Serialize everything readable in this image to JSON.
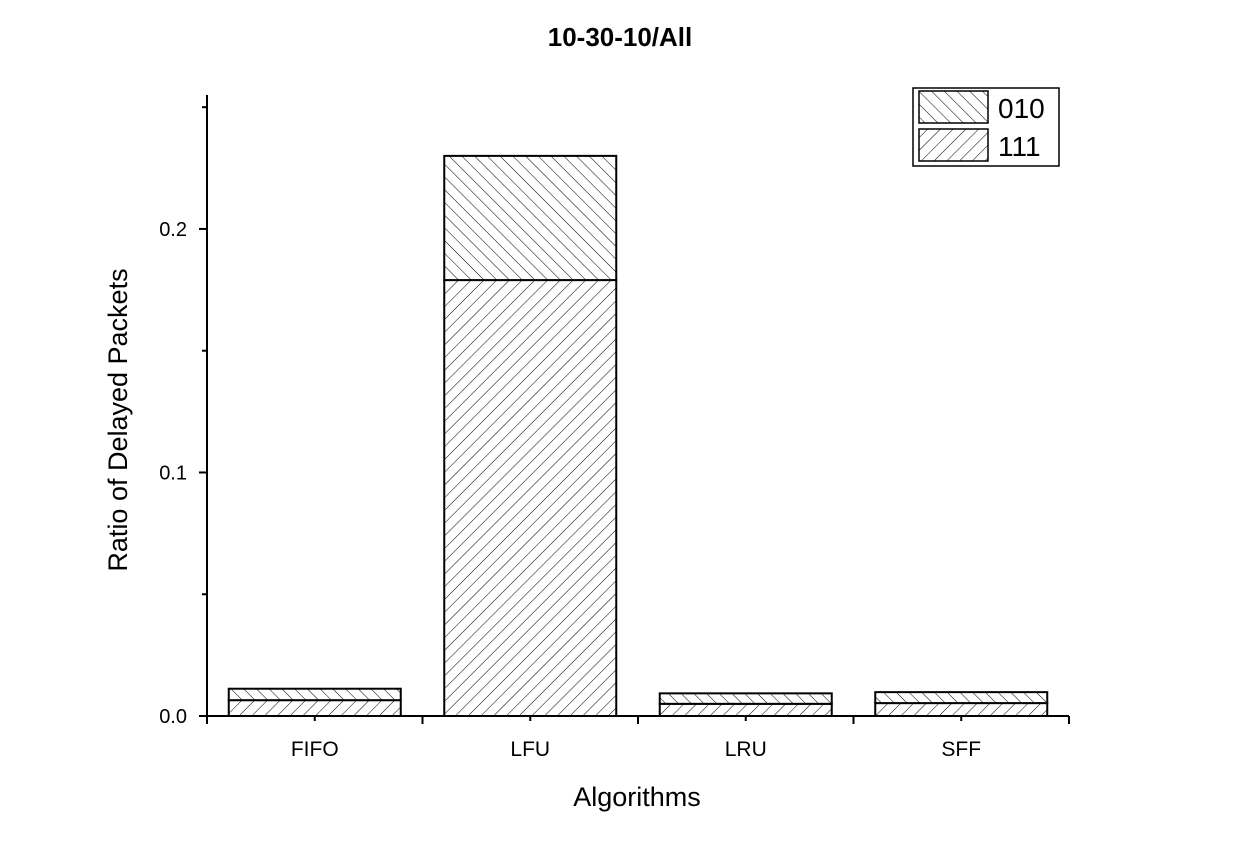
{
  "chart_data": {
    "type": "bar",
    "stacked": true,
    "title": "10-30-10/All",
    "xlabel": "Algorithms",
    "ylabel": "Ratio of Delayed Packets",
    "categories": [
      "FIFO",
      "LFU",
      "LRU",
      "SFF"
    ],
    "series": [
      {
        "name": "111",
        "values": [
          0.0065,
          0.179,
          0.005,
          0.0053
        ],
        "pattern": "forward-hatch"
      },
      {
        "name": "010",
        "values": [
          0.0047,
          0.051,
          0.0043,
          0.0045
        ],
        "pattern": "back-hatch"
      }
    ],
    "ylim": [
      0,
      0.255
    ],
    "yticks": [
      "0.0",
      "0.1",
      "0.2"
    ],
    "ytick_values": [
      0,
      0.1,
      0.2
    ],
    "y_minor_ticks": [
      0.05,
      0.15,
      0.25
    ],
    "legend_order": [
      "010",
      "111"
    ],
    "legend_position": "top-right",
    "grid": false,
    "colors": {
      "bar_fill": "#ffffff",
      "hatch": "#000000",
      "edge": "#000000"
    }
  }
}
